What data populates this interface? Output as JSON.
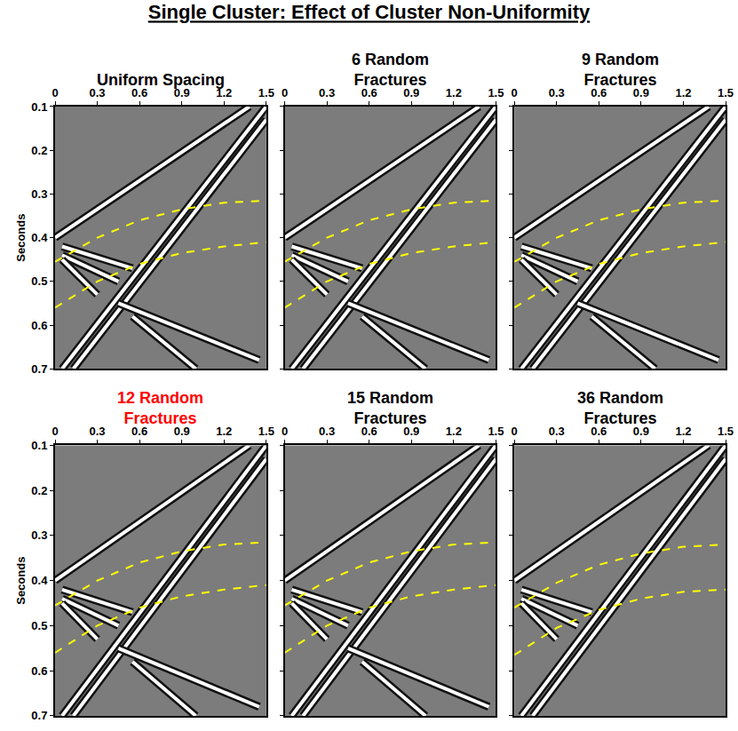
{
  "title": "Single Cluster: Effect of Cluster Non-Uniformity",
  "chart_data": [
    {
      "type": "line",
      "title": {
        "text": "Uniform Spacing",
        "color": "#000000"
      },
      "ylabel": "Seconds",
      "xlim": [
        0,
        1.5
      ],
      "xticks": [
        0,
        0.3,
        0.6,
        0.9,
        1.2,
        1.5
      ],
      "ylim": [
        0.7,
        0.1
      ],
      "yticks": [
        0.1,
        0.2,
        0.3,
        0.4,
        0.5,
        0.6,
        0.7
      ],
      "series": [
        {
          "color": "#ffffff",
          "line_style": "solid",
          "x": [
            0,
            1.38
          ],
          "values": [
            0.4,
            0.1
          ]
        },
        {
          "color": "#ffffff",
          "line_style": "solid",
          "x": [
            0.05,
            1.5
          ],
          "values": [
            0.7,
            0.1
          ]
        },
        {
          "color": "#ffffff",
          "line_style": "solid",
          "x": [
            0.13,
            1.5
          ],
          "values": [
            0.7,
            0.13
          ]
        },
        {
          "color": "#ffffff",
          "line_style": "solid",
          "x": [
            0.05,
            0.55
          ],
          "values": [
            0.42,
            0.47
          ]
        },
        {
          "color": "#ffffff",
          "line_style": "solid",
          "x": [
            0.05,
            0.45
          ],
          "values": [
            0.44,
            0.5
          ]
        },
        {
          "color": "#ffffff",
          "line_style": "solid",
          "x": [
            0.05,
            0.3
          ],
          "values": [
            0.45,
            0.53
          ]
        },
        {
          "color": "#ffffff",
          "line_style": "solid",
          "x": [
            0.45,
            1.45
          ],
          "values": [
            0.55,
            0.68
          ]
        },
        {
          "color": "#ffffff",
          "line_style": "solid",
          "x": [
            0.55,
            1.0
          ],
          "values": [
            0.58,
            0.7
          ]
        },
        {
          "color": "#ffff00",
          "line_style": "dash",
          "x": [
            0,
            0.3,
            0.6,
            0.9,
            1.2,
            1.5
          ],
          "values": [
            0.455,
            0.4,
            0.36,
            0.335,
            0.32,
            0.315
          ]
        },
        {
          "color": "#ffff00",
          "line_style": "dash",
          "x": [
            0,
            0.3,
            0.6,
            0.9,
            1.2,
            1.5
          ],
          "values": [
            0.56,
            0.5,
            0.46,
            0.435,
            0.42,
            0.41
          ]
        }
      ]
    },
    {
      "type": "line",
      "title": {
        "text": "6 Random Fractures",
        "color": "#000000"
      },
      "tick_labels": "x",
      "xlim": [
        0,
        1.5
      ],
      "xticks": [
        0,
        0.3,
        0.6,
        0.9,
        1.2,
        1.5
      ],
      "ylim": [
        0.7,
        0.1
      ],
      "yticks": [
        0.1,
        0.2,
        0.3,
        0.4,
        0.5,
        0.6,
        0.7
      ],
      "series": [
        {
          "color": "#ffffff",
          "line_style": "solid",
          "x": [
            0,
            1.38
          ],
          "values": [
            0.4,
            0.1
          ]
        },
        {
          "color": "#ffffff",
          "line_style": "solid",
          "x": [
            0.05,
            1.5
          ],
          "values": [
            0.7,
            0.1
          ]
        },
        {
          "color": "#ffffff",
          "line_style": "solid",
          "x": [
            0.13,
            1.5
          ],
          "values": [
            0.7,
            0.13
          ]
        },
        {
          "color": "#ffffff",
          "line_style": "solid",
          "x": [
            0.05,
            0.55
          ],
          "values": [
            0.42,
            0.47
          ]
        },
        {
          "color": "#ffffff",
          "line_style": "solid",
          "x": [
            0.05,
            0.45
          ],
          "values": [
            0.44,
            0.5
          ]
        },
        {
          "color": "#ffffff",
          "line_style": "solid",
          "x": [
            0.05,
            0.3
          ],
          "values": [
            0.45,
            0.53
          ]
        },
        {
          "color": "#ffffff",
          "line_style": "solid",
          "x": [
            0.45,
            1.45
          ],
          "values": [
            0.55,
            0.68
          ]
        },
        {
          "color": "#ffffff",
          "line_style": "solid",
          "x": [
            0.55,
            1.0
          ],
          "values": [
            0.58,
            0.7
          ]
        },
        {
          "color": "#ffff00",
          "line_style": "dash",
          "x": [
            0,
            0.3,
            0.6,
            0.9,
            1.2,
            1.5
          ],
          "values": [
            0.455,
            0.4,
            0.36,
            0.335,
            0.32,
            0.315
          ]
        },
        {
          "color": "#ffff00",
          "line_style": "dash",
          "x": [
            0,
            0.3,
            0.6,
            0.9,
            1.2,
            1.5
          ],
          "values": [
            0.56,
            0.5,
            0.46,
            0.435,
            0.42,
            0.41
          ]
        }
      ]
    },
    {
      "type": "line",
      "title": {
        "text": "9 Random Fractures",
        "color": "#000000"
      },
      "tick_labels": "x",
      "xlim": [
        0,
        1.5
      ],
      "xticks": [
        0,
        0.3,
        0.6,
        0.9,
        1.2,
        1.5
      ],
      "ylim": [
        0.7,
        0.1
      ],
      "yticks": [
        0.1,
        0.2,
        0.3,
        0.4,
        0.5,
        0.6,
        0.7
      ],
      "series": [
        {
          "color": "#ffffff",
          "line_style": "solid",
          "x": [
            0,
            1.38
          ],
          "values": [
            0.4,
            0.1
          ]
        },
        {
          "color": "#ffffff",
          "line_style": "solid",
          "x": [
            0.05,
            1.5
          ],
          "values": [
            0.7,
            0.1
          ]
        },
        {
          "color": "#ffffff",
          "line_style": "solid",
          "x": [
            0.13,
            1.5
          ],
          "values": [
            0.7,
            0.13
          ]
        },
        {
          "color": "#ffffff",
          "line_style": "solid",
          "x": [
            0.05,
            0.55
          ],
          "values": [
            0.42,
            0.47
          ]
        },
        {
          "color": "#ffffff",
          "line_style": "solid",
          "x": [
            0.05,
            0.45
          ],
          "values": [
            0.44,
            0.5
          ]
        },
        {
          "color": "#ffffff",
          "line_style": "solid",
          "x": [
            0.05,
            0.3
          ],
          "values": [
            0.45,
            0.53
          ]
        },
        {
          "color": "#ffffff",
          "line_style": "solid",
          "x": [
            0.45,
            1.45
          ],
          "values": [
            0.55,
            0.68
          ]
        },
        {
          "color": "#ffffff",
          "line_style": "solid",
          "x": [
            0.55,
            1.0
          ],
          "values": [
            0.58,
            0.7
          ]
        },
        {
          "color": "#ffff00",
          "line_style": "dash",
          "x": [
            0,
            0.3,
            0.6,
            0.9,
            1.2,
            1.5
          ],
          "values": [
            0.455,
            0.4,
            0.36,
            0.335,
            0.32,
            0.315
          ]
        },
        {
          "color": "#ffff00",
          "line_style": "dash",
          "x": [
            0,
            0.3,
            0.6,
            0.9,
            1.2,
            1.5
          ],
          "values": [
            0.56,
            0.5,
            0.46,
            0.435,
            0.42,
            0.41
          ]
        }
      ]
    },
    {
      "type": "line",
      "title": {
        "text": "12 Random Fractures",
        "color": "#ff0000"
      },
      "ylabel": "Seconds",
      "xlim": [
        0,
        1.5
      ],
      "xticks": [
        0,
        0.3,
        0.6,
        0.9,
        1.2,
        1.5
      ],
      "ylim": [
        0.7,
        0.1
      ],
      "yticks": [
        0.1,
        0.2,
        0.3,
        0.4,
        0.5,
        0.6,
        0.7
      ],
      "series": [
        {
          "color": "#ffffff",
          "line_style": "solid",
          "x": [
            0,
            1.38
          ],
          "values": [
            0.4,
            0.1
          ]
        },
        {
          "color": "#ffffff",
          "line_style": "solid",
          "x": [
            0.05,
            1.5
          ],
          "values": [
            0.7,
            0.1
          ]
        },
        {
          "color": "#ffffff",
          "line_style": "solid",
          "x": [
            0.13,
            1.5
          ],
          "values": [
            0.7,
            0.13
          ]
        },
        {
          "color": "#ffffff",
          "line_style": "solid",
          "x": [
            0.05,
            0.55
          ],
          "values": [
            0.42,
            0.47
          ]
        },
        {
          "color": "#ffffff",
          "line_style": "solid",
          "x": [
            0.05,
            0.45
          ],
          "values": [
            0.44,
            0.5
          ]
        },
        {
          "color": "#ffffff",
          "line_style": "solid",
          "x": [
            0.05,
            0.3
          ],
          "values": [
            0.45,
            0.53
          ]
        },
        {
          "color": "#ffffff",
          "line_style": "solid",
          "x": [
            0.45,
            1.45
          ],
          "values": [
            0.55,
            0.68
          ]
        },
        {
          "color": "#ffffff",
          "line_style": "solid",
          "x": [
            0.55,
            1.0
          ],
          "values": [
            0.58,
            0.7
          ]
        },
        {
          "color": "#ffff00",
          "line_style": "dash",
          "x": [
            0,
            0.3,
            0.6,
            0.9,
            1.2,
            1.5
          ],
          "values": [
            0.455,
            0.4,
            0.36,
            0.335,
            0.32,
            0.315
          ]
        },
        {
          "color": "#ffff00",
          "line_style": "dash",
          "x": [
            0,
            0.3,
            0.6,
            0.9,
            1.2,
            1.5
          ],
          "values": [
            0.56,
            0.5,
            0.46,
            0.435,
            0.42,
            0.41
          ]
        }
      ]
    },
    {
      "type": "line",
      "title": {
        "text": "15 Random Fractures",
        "color": "#000000"
      },
      "tick_labels": "x",
      "xlim": [
        0,
        1.5
      ],
      "xticks": [
        0,
        0.3,
        0.6,
        0.9,
        1.2,
        1.5
      ],
      "ylim": [
        0.7,
        0.1
      ],
      "yticks": [
        0.1,
        0.2,
        0.3,
        0.4,
        0.5,
        0.6,
        0.7
      ],
      "series": [
        {
          "color": "#ffffff",
          "line_style": "solid",
          "x": [
            0,
            1.38
          ],
          "values": [
            0.4,
            0.1
          ]
        },
        {
          "color": "#ffffff",
          "line_style": "solid",
          "x": [
            0.05,
            1.5
          ],
          "values": [
            0.7,
            0.1
          ]
        },
        {
          "color": "#ffffff",
          "line_style": "solid",
          "x": [
            0.13,
            1.5
          ],
          "values": [
            0.7,
            0.13
          ]
        },
        {
          "color": "#ffffff",
          "line_style": "solid",
          "x": [
            0.05,
            0.55
          ],
          "values": [
            0.42,
            0.47
          ]
        },
        {
          "color": "#ffffff",
          "line_style": "solid",
          "x": [
            0.05,
            0.45
          ],
          "values": [
            0.44,
            0.5
          ]
        },
        {
          "color": "#ffffff",
          "line_style": "solid",
          "x": [
            0.05,
            0.3
          ],
          "values": [
            0.45,
            0.53
          ]
        },
        {
          "color": "#ffffff",
          "line_style": "solid",
          "x": [
            0.45,
            1.45
          ],
          "values": [
            0.55,
            0.68
          ]
        },
        {
          "color": "#ffffff",
          "line_style": "solid",
          "x": [
            0.55,
            1.0
          ],
          "values": [
            0.58,
            0.7
          ]
        },
        {
          "color": "#ffff00",
          "line_style": "dash",
          "x": [
            0,
            0.3,
            0.6,
            0.9,
            1.2,
            1.5
          ],
          "values": [
            0.455,
            0.4,
            0.36,
            0.335,
            0.32,
            0.315
          ]
        },
        {
          "color": "#ffff00",
          "line_style": "dash",
          "x": [
            0,
            0.3,
            0.6,
            0.9,
            1.2,
            1.5
          ],
          "values": [
            0.56,
            0.5,
            0.46,
            0.435,
            0.42,
            0.41
          ]
        }
      ]
    },
    {
      "type": "line",
      "title": {
        "text": "36 Random Fractures",
        "color": "#000000"
      },
      "tick_labels": "x",
      "xlim": [
        0,
        1.5
      ],
      "xticks": [
        0,
        0.3,
        0.6,
        0.9,
        1.2,
        1.5
      ],
      "ylim": [
        0.7,
        0.1
      ],
      "yticks": [
        0.1,
        0.2,
        0.3,
        0.4,
        0.5,
        0.6,
        0.7
      ],
      "series": [
        {
          "color": "#ffffff",
          "line_style": "solid",
          "x": [
            0,
            1.38
          ],
          "values": [
            0.4,
            0.1
          ]
        },
        {
          "color": "#ffffff",
          "line_style": "solid",
          "x": [
            0.05,
            1.5
          ],
          "values": [
            0.7,
            0.1
          ]
        },
        {
          "color": "#ffffff",
          "line_style": "solid",
          "x": [
            0.13,
            1.5
          ],
          "values": [
            0.7,
            0.13
          ]
        },
        {
          "color": "#ffffff",
          "line_style": "solid",
          "x": [
            0.05,
            0.55
          ],
          "values": [
            0.42,
            0.47
          ]
        },
        {
          "color": "#ffffff",
          "line_style": "solid",
          "x": [
            0.05,
            0.45
          ],
          "values": [
            0.44,
            0.5
          ]
        },
        {
          "color": "#ffffff",
          "line_style": "solid",
          "x": [
            0.05,
            0.3
          ],
          "values": [
            0.45,
            0.53
          ]
        },
        {
          "color": "#ffff00",
          "line_style": "dash",
          "x": [
            0,
            0.3,
            0.6,
            0.9,
            1.2,
            1.5
          ],
          "values": [
            0.46,
            0.405,
            0.365,
            0.34,
            0.325,
            0.32
          ]
        },
        {
          "color": "#ffff00",
          "line_style": "dash",
          "x": [
            0,
            0.3,
            0.6,
            0.9,
            1.2,
            1.5
          ],
          "values": [
            0.565,
            0.505,
            0.465,
            0.44,
            0.425,
            0.42
          ]
        }
      ]
    }
  ]
}
